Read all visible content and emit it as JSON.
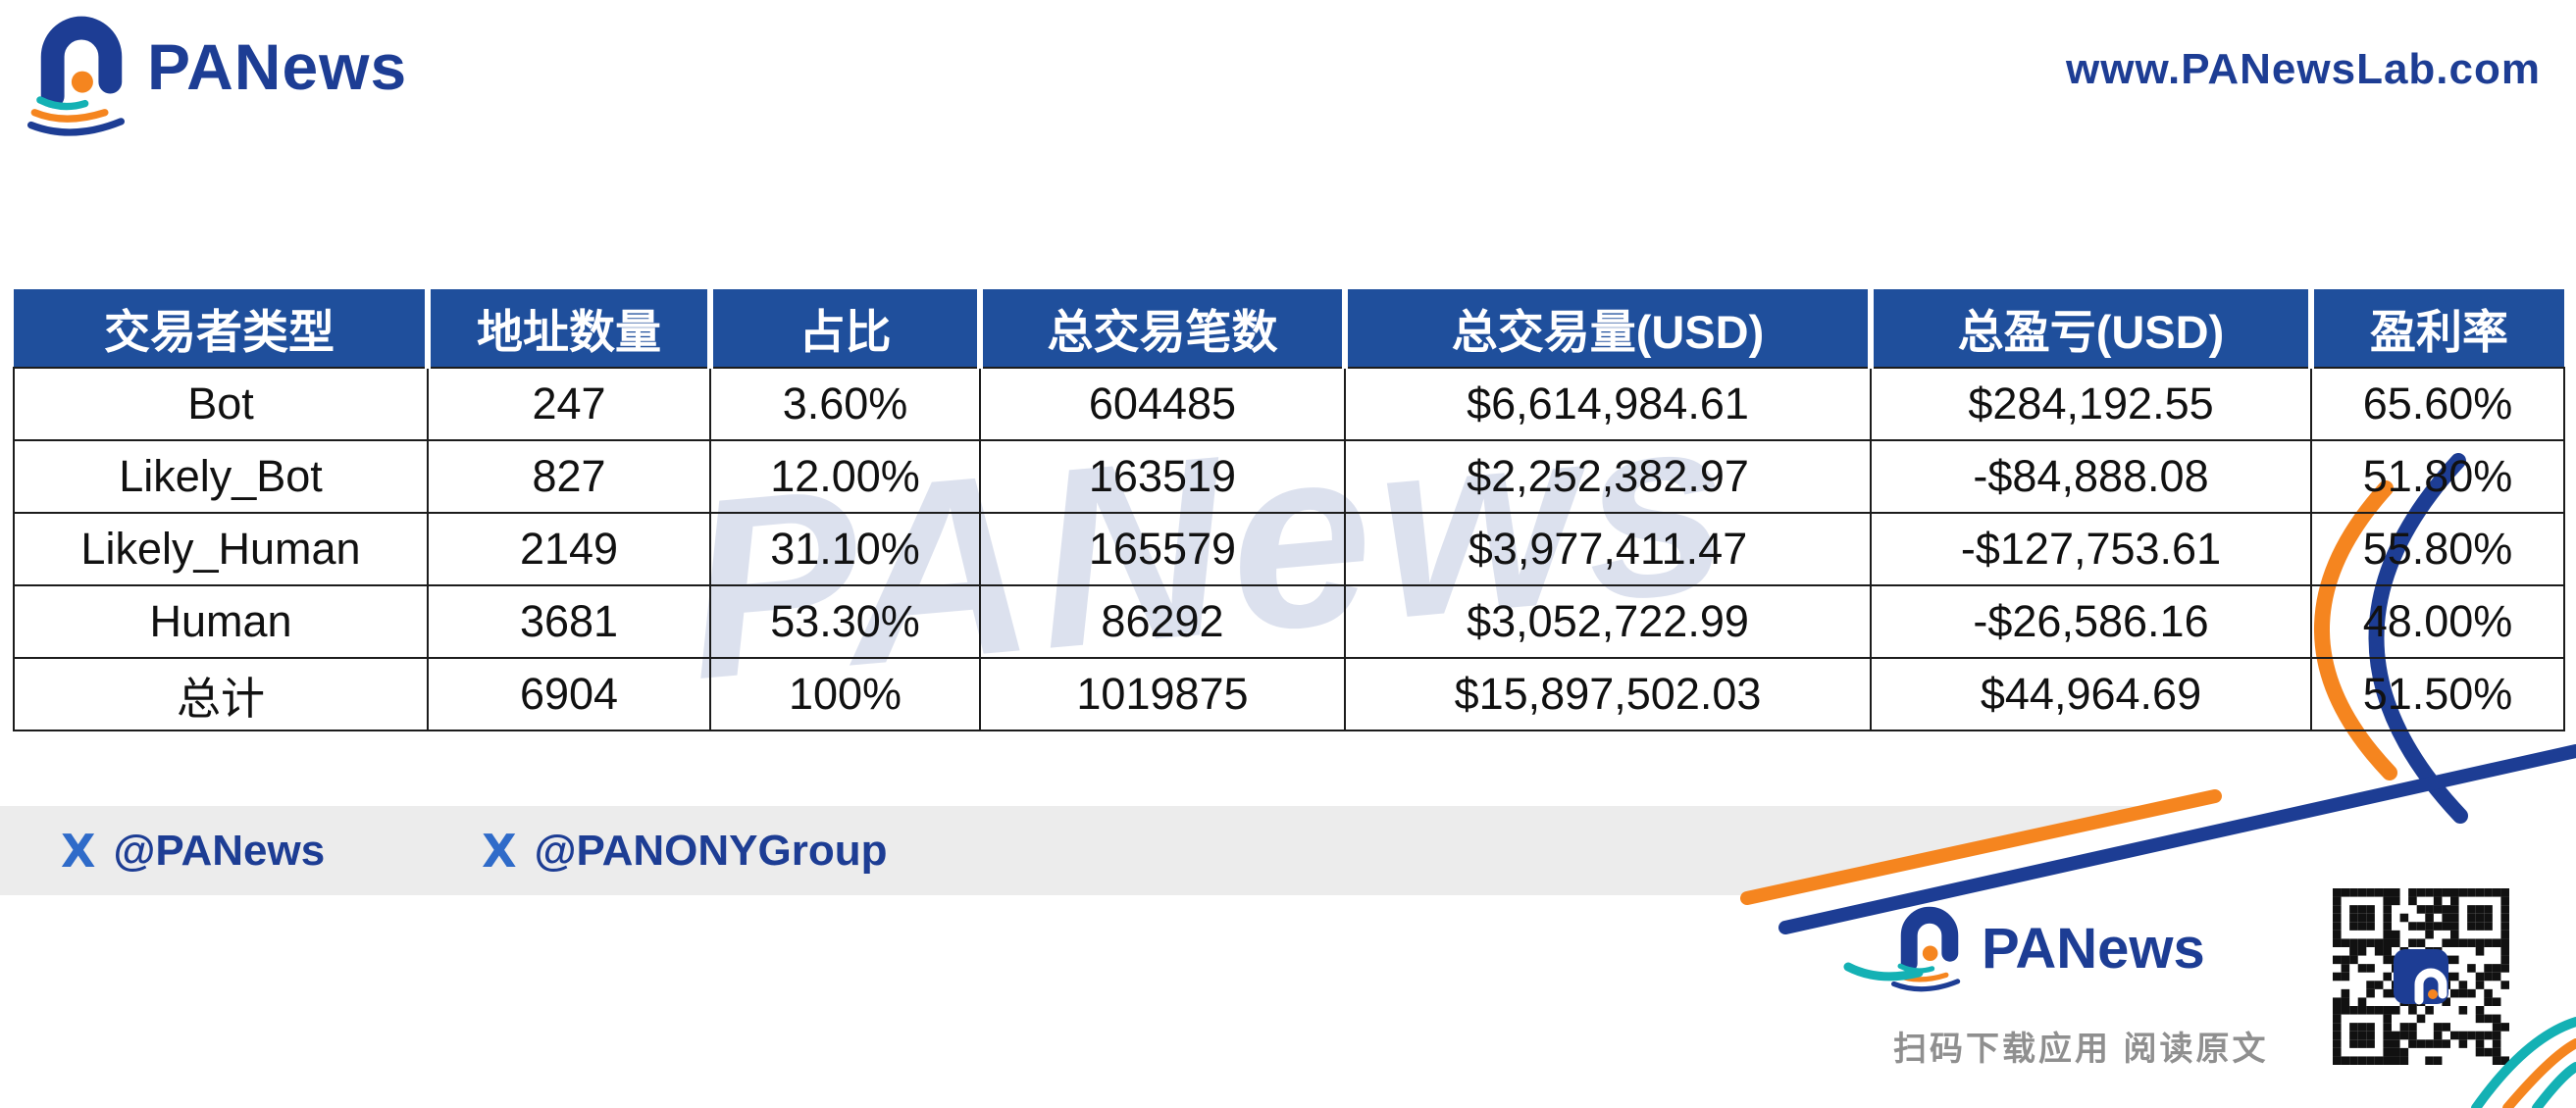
{
  "header": {
    "brand": "PANews",
    "website": "www.PANewsLab.com"
  },
  "chart_data": {
    "type": "table",
    "columns": [
      "交易者类型",
      "地址数量",
      "占比",
      "总交易笔数",
      "总交易量(USD)",
      "总盈亏(USD)",
      "盈利率"
    ],
    "rows": [
      [
        "Bot",
        "247",
        "3.60%",
        "604485",
        "$6,614,984.61",
        "$284,192.55",
        "65.60%"
      ],
      [
        "Likely_Bot",
        "827",
        "12.00%",
        "163519",
        "$2,252,382.97",
        "-$84,888.08",
        "51.80%"
      ],
      [
        "Likely_Human",
        "2149",
        "31.10%",
        "165579",
        "$3,977,411.47",
        "-$127,753.61",
        "55.80%"
      ],
      [
        "Human",
        "3681",
        "53.30%",
        "86292",
        "$3,052,722.99",
        "-$26,586.16",
        "48.00%"
      ],
      [
        "总计",
        "6904",
        "100%",
        "1019875",
        "$15,897,502.03",
        "$44,964.69",
        "51.50%"
      ]
    ]
  },
  "watermark": "PANews",
  "footer": {
    "handles": [
      "@PANews",
      "@PANONYGroup"
    ],
    "x_icon": "X",
    "brand": "PANews",
    "caption": "扫码下载应用  阅读原文"
  },
  "colors": {
    "brand_navy": "#1d3d94",
    "header_blue": "#1f4f9c",
    "orange": "#f5851f",
    "teal": "#14b1b4",
    "footer_gray": "#ececec"
  }
}
